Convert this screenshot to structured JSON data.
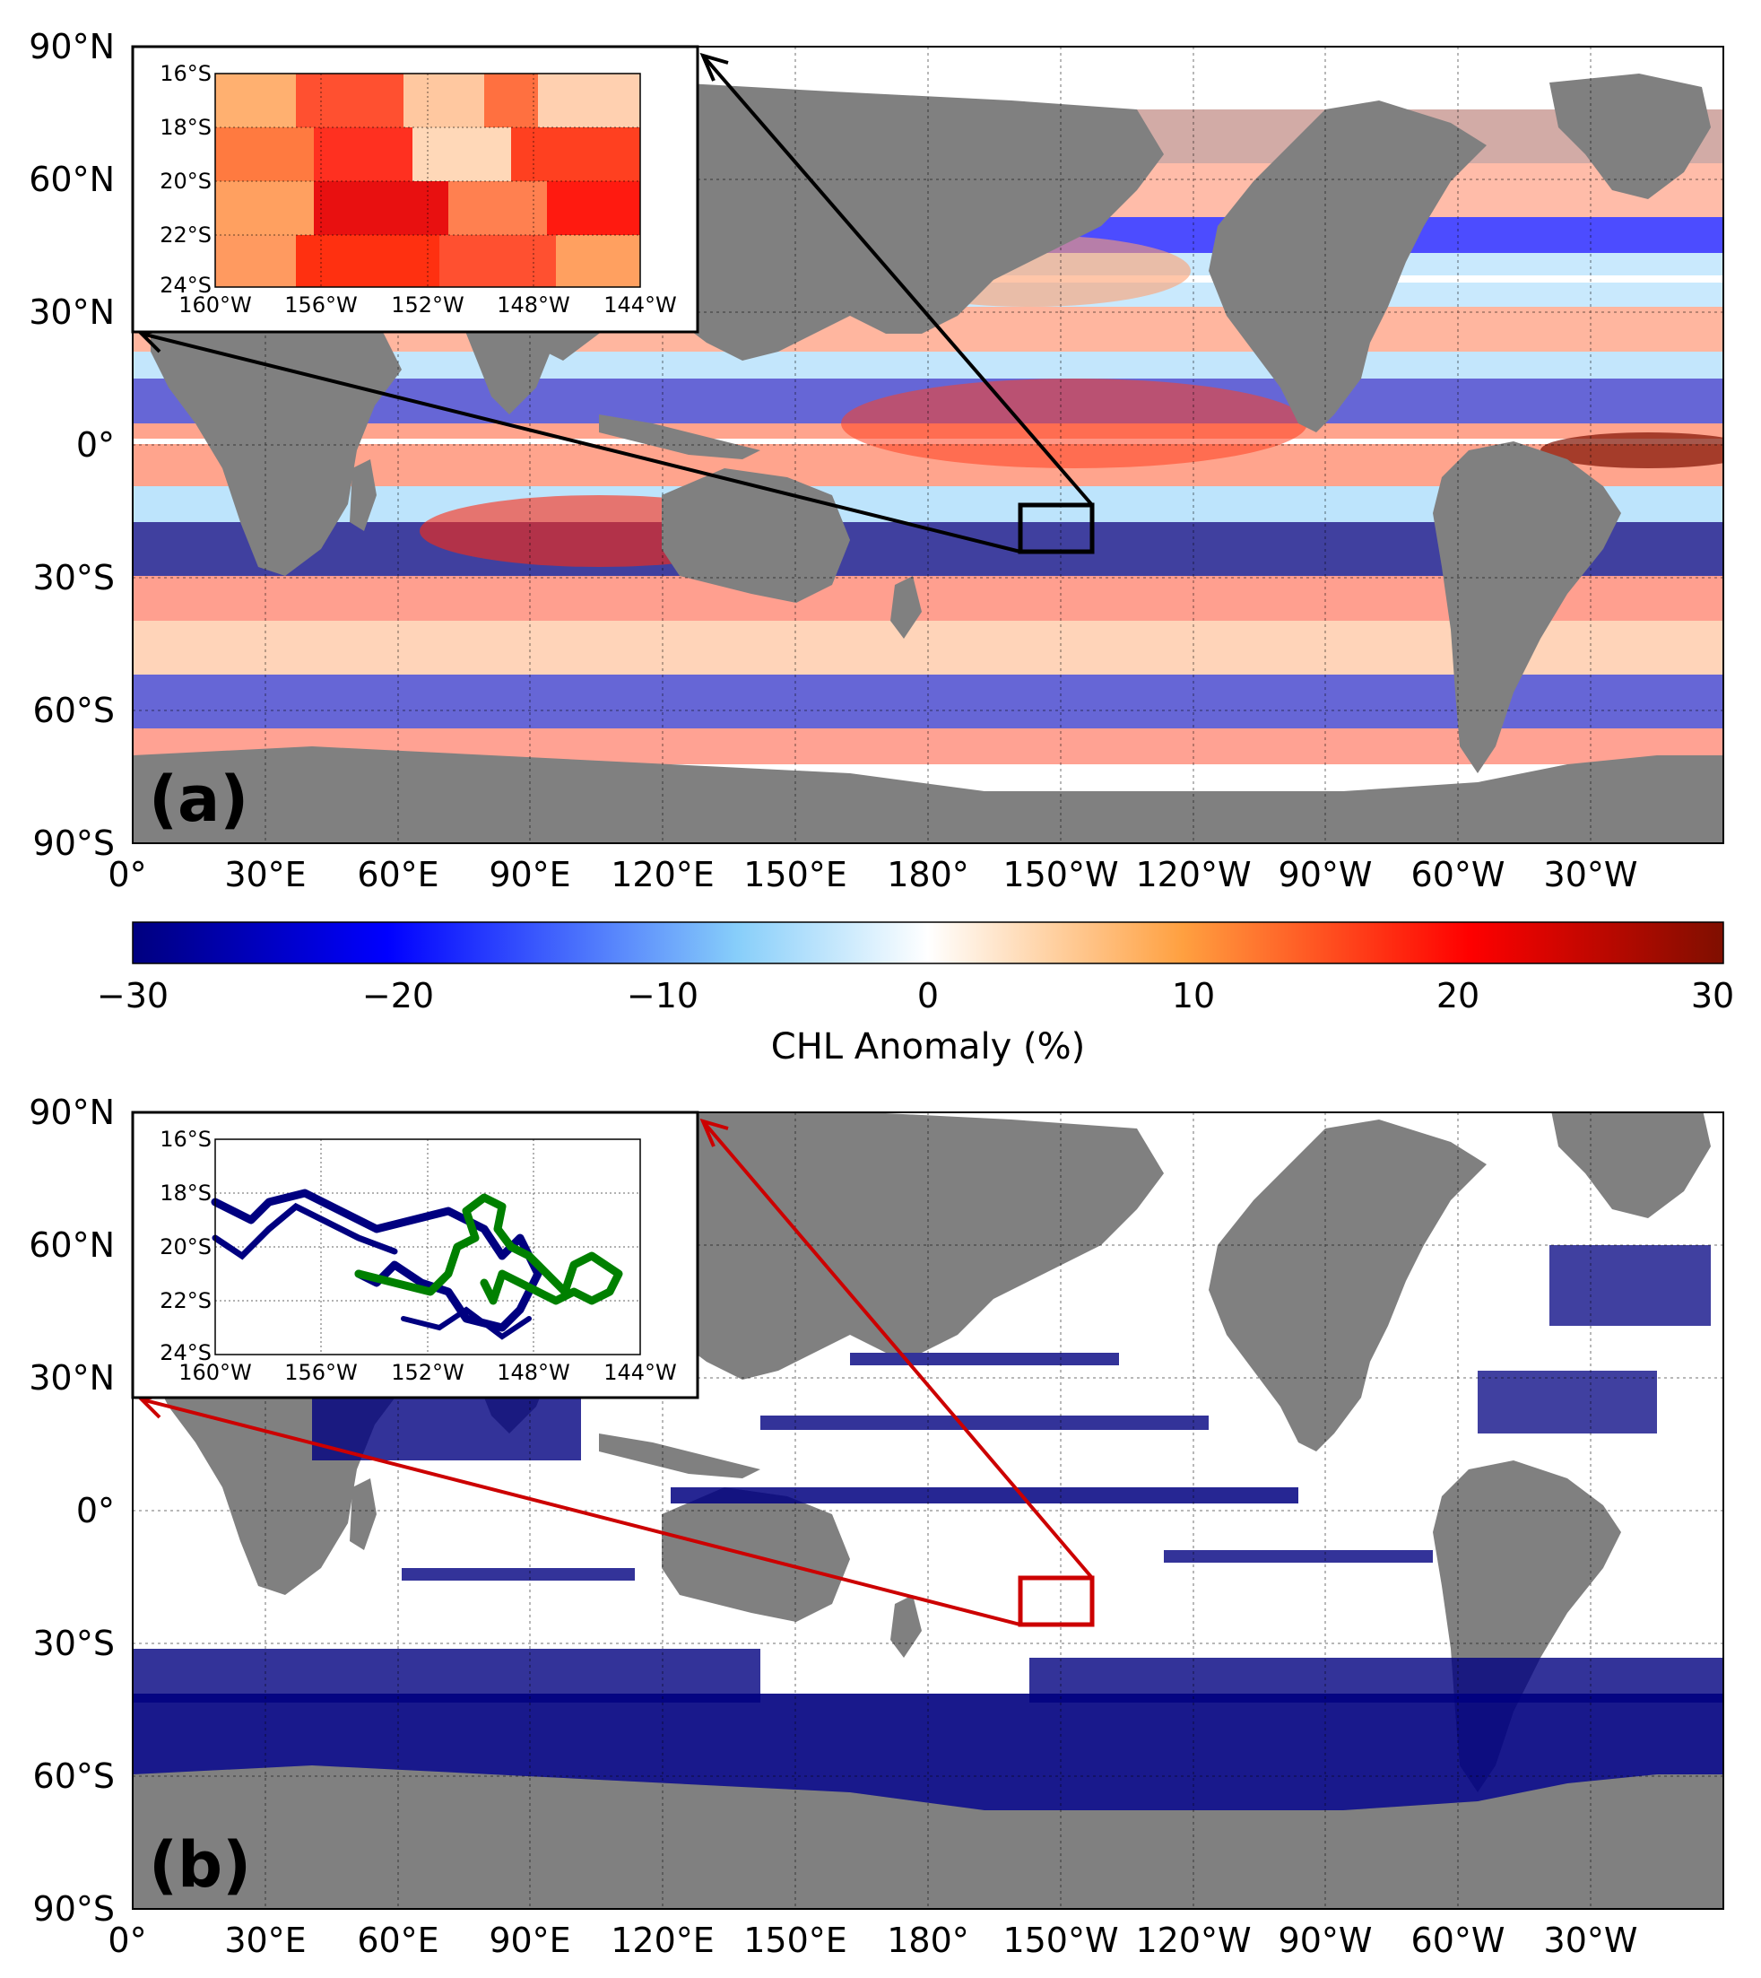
{
  "panel_a": {
    "label": "(a)",
    "lat_ticks": [
      "90°N",
      "60°N",
      "30°N",
      "0°",
      "30°S",
      "60°S",
      "90°S"
    ],
    "lon_ticks": [
      "0°",
      "30°E",
      "60°E",
      "90°E",
      "120°E",
      "150°E",
      "180°",
      "150°W",
      "120°W",
      "90°W",
      "60°W",
      "30°W"
    ],
    "inset": {
      "lat_ticks": [
        "16°S",
        "18°S",
        "20°S",
        "22°S",
        "24°S"
      ],
      "lon_ticks": [
        "160°W",
        "156°W",
        "152°W",
        "148°W",
        "144°W"
      ]
    },
    "colors": {
      "land": "#808080",
      "ocean": "#ffffff",
      "box": "#000000"
    }
  },
  "colorbar": {
    "label": "CHL Anomaly (%)",
    "ticks": [
      "−30",
      "−20",
      "−10",
      "0",
      "10",
      "20",
      "30"
    ],
    "range": [
      -30,
      30
    ],
    "colormap": [
      "#00007f",
      "#0000ff",
      "#87cefa",
      "#ffffff",
      "#ffa040",
      "#ff0000",
      "#7f0f00"
    ]
  },
  "panel_b": {
    "label": "(b)",
    "lat_ticks": [
      "90°N",
      "60°N",
      "30°N",
      "0°",
      "30°S",
      "60°S",
      "90°S"
    ],
    "lon_ticks": [
      "0°",
      "30°E",
      "60°E",
      "90°E",
      "120°E",
      "150°E",
      "180°",
      "150°W",
      "120°W",
      "90°W",
      "60°W",
      "30°W"
    ],
    "inset": {
      "lat_ticks": [
        "16°S",
        "18°S",
        "20°S",
        "22°S",
        "24°S"
      ],
      "lon_ticks": [
        "160°W",
        "156°W",
        "152°W",
        "148°W",
        "144°W"
      ]
    },
    "colors": {
      "land": "#808080",
      "ocean": "#ffffff",
      "tracks": "#000080",
      "highlight_track": "#008000",
      "box": "#cc0000"
    }
  }
}
